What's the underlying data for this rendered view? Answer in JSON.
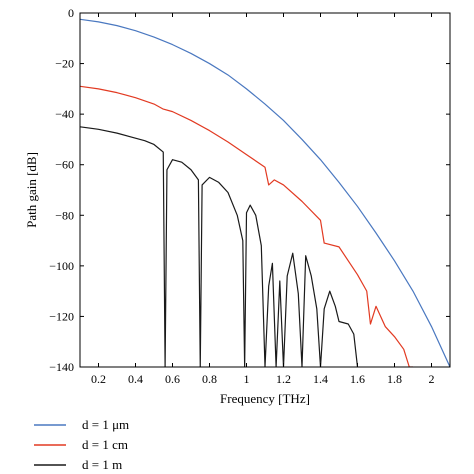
{
  "chart_data": {
    "type": "line",
    "xlabel": "Frequency [THz]",
    "ylabel": "Path gain [dB]",
    "xlim": [
      0.1,
      2.1
    ],
    "ylim": [
      -140,
      0
    ],
    "x_ticks": [
      0.2,
      0.4,
      0.6,
      0.8,
      1,
      1.2,
      1.4,
      1.6,
      1.8,
      2
    ],
    "x_tick_labels": [
      "0.2",
      "0.4",
      "0.6",
      "0.8",
      "1",
      "1.2",
      "1.4",
      "1.6",
      "1.8",
      "2"
    ],
    "y_ticks": [
      0,
      -20,
      -40,
      -60,
      -80,
      -100,
      -120,
      -140
    ],
    "y_tick_labels": [
      "0",
      "−20",
      "−40",
      "−60",
      "−80",
      "−100",
      "−120",
      "−140"
    ],
    "grid": false,
    "legend_position": "bottom-left, below plot",
    "series": [
      {
        "name": "d = 1 μm",
        "color": "#4a78c0",
        "x": [
          0.1,
          0.2,
          0.3,
          0.4,
          0.5,
          0.6,
          0.7,
          0.8,
          0.9,
          1.0,
          1.1,
          1.2,
          1.3,
          1.4,
          1.5,
          1.6,
          1.7,
          1.8,
          1.9,
          2.0,
          2.1
        ],
        "y": [
          -2.5,
          -3.5,
          -5,
          -7,
          -9.5,
          -12.5,
          -16,
          -20,
          -24.5,
          -30,
          -36,
          -42.5,
          -50,
          -58,
          -67,
          -76.5,
          -87,
          -98,
          -110,
          -124,
          -140
        ]
      },
      {
        "name": "d = 1 cm",
        "color": "#e23a22",
        "x": [
          0.1,
          0.2,
          0.3,
          0.4,
          0.5,
          0.55,
          0.6,
          0.7,
          0.8,
          0.9,
          1.0,
          1.1,
          1.12,
          1.15,
          1.2,
          1.3,
          1.4,
          1.42,
          1.5,
          1.6,
          1.65,
          1.67,
          1.7,
          1.75,
          1.8,
          1.85,
          1.88,
          1.9
        ],
        "y": [
          -29,
          -30,
          -31.5,
          -33.5,
          -36,
          -38,
          -39,
          -42.5,
          -46.5,
          -51,
          -56,
          -61,
          -68,
          -66,
          -68,
          -74.5,
          -82,
          -91,
          -92.5,
          -103.5,
          -110,
          -123,
          -116,
          -124,
          -128,
          -133,
          -140,
          -140
        ]
      },
      {
        "name": "d = 1 m",
        "color": "#1a1a1a",
        "x": [
          0.1,
          0.2,
          0.3,
          0.4,
          0.45,
          0.5,
          0.55,
          0.56,
          0.57,
          0.6,
          0.65,
          0.7,
          0.74,
          0.75,
          0.76,
          0.8,
          0.85,
          0.9,
          0.95,
          0.98,
          0.99,
          1.0,
          1.02,
          1.05,
          1.08,
          1.1,
          1.12,
          1.14,
          1.16,
          1.18,
          1.2,
          1.22,
          1.25,
          1.28,
          1.3,
          1.32,
          1.35,
          1.38,
          1.4,
          1.42,
          1.45,
          1.48,
          1.5,
          1.55,
          1.58,
          1.6
        ],
        "y": [
          -45,
          -46,
          -47.5,
          -49.5,
          -50.5,
          -52,
          -55,
          -140,
          -62,
          -58,
          -59,
          -62,
          -66,
          -140,
          -68,
          -65,
          -67,
          -71,
          -80,
          -90,
          -140,
          -79,
          -76,
          -80,
          -92,
          -140,
          -108,
          -99,
          -140,
          -106,
          -140,
          -104,
          -95,
          -111,
          -140,
          -96,
          -104,
          -117,
          -140,
          -117,
          -110,
          -116,
          -122,
          -123,
          -127,
          -140
        ]
      }
    ]
  }
}
